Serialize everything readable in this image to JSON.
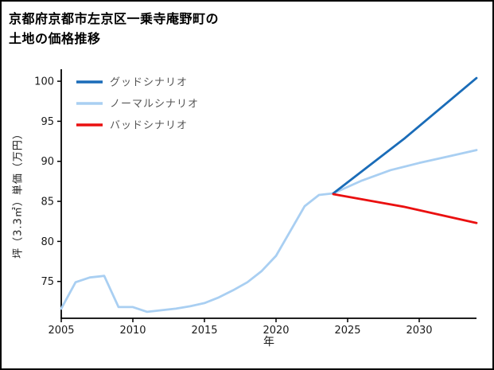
{
  "chart_data": {
    "type": "line",
    "title": "京都府京都市左京区一乗寺庵野町の土地の価格推移",
    "title_lines": [
      "京都府京都市左京区一乗寺庵野町の",
      "土地の価格推移"
    ],
    "xlabel": "年",
    "ylabel": "坪（3.3㎡）単価（万円）",
    "xlim": [
      2005,
      2034
    ],
    "ylim": [
      70.4,
      101.5
    ],
    "xticks": [
      2005,
      2010,
      2015,
      2020,
      2025,
      2030
    ],
    "yticks": [
      75,
      80,
      85,
      90,
      95,
      100
    ],
    "grid": false,
    "legend_position": "upper-left",
    "background": "#ffffff",
    "axis_color": "#000000",
    "tick_label_color": "#1a1a1a",
    "legend_text_color": "#555555",
    "series": [
      {
        "name": "グッドシナリオ",
        "color": "#1a6cb8",
        "x": [
          2024,
          2029,
          2034
        ],
        "values": [
          86.0,
          92.9,
          100.4
        ]
      },
      {
        "name": "ノーマルシナリオ",
        "color": "#a9cff2",
        "x": [
          2005,
          2006,
          2007,
          2008,
          2009,
          2010,
          2011,
          2012,
          2013,
          2014,
          2015,
          2016,
          2017,
          2018,
          2019,
          2020,
          2021,
          2022,
          2023,
          2024,
          2026,
          2028,
          2030,
          2032,
          2034
        ],
        "values": [
          71.6,
          74.9,
          75.5,
          75.7,
          71.8,
          71.8,
          71.2,
          71.4,
          71.6,
          71.9,
          72.3,
          73.0,
          73.9,
          74.9,
          76.3,
          78.2,
          81.3,
          84.4,
          85.8,
          86.0,
          87.6,
          88.9,
          89.8,
          90.6,
          91.4
        ]
      },
      {
        "name": "バッドシナリオ",
        "color": "#ea1010",
        "x": [
          2024,
          2029,
          2034
        ],
        "values": [
          85.9,
          84.3,
          82.3
        ]
      }
    ]
  }
}
